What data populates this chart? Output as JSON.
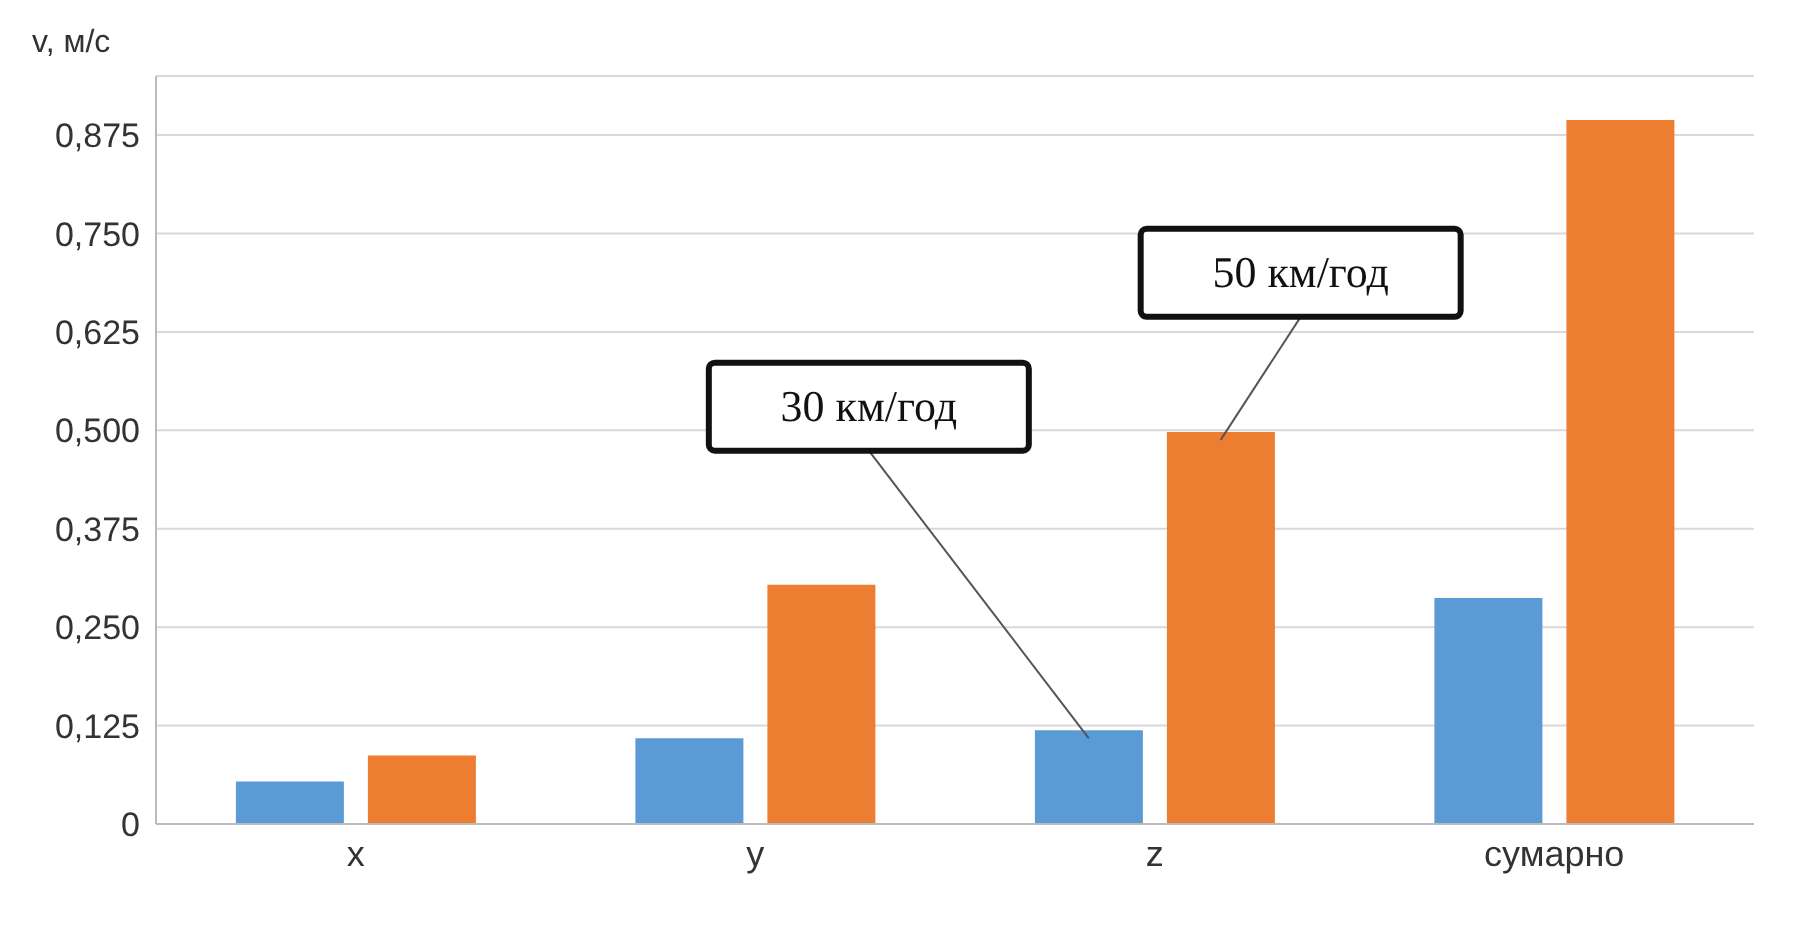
{
  "chart_data": {
    "type": "bar",
    "ylabel": "v, м/с",
    "categories": [
      "x",
      "y",
      "z",
      "сумарно"
    ],
    "series": [
      {
        "name": "30 км/год",
        "color": "#5b9bd5",
        "values": [
          0.054,
          0.109,
          0.119,
          0.287
        ]
      },
      {
        "name": "50 км/год",
        "color": "#ed7d31",
        "values": [
          0.087,
          0.304,
          0.498,
          0.894
        ]
      }
    ],
    "ylim": [
      0,
      0.95
    ],
    "yticks": [
      0,
      {
        "value": 0.125,
        "label": "0,125"
      },
      {
        "value": 0.25,
        "label": "0,250"
      },
      {
        "value": 0.375,
        "label": "0,375"
      },
      {
        "value": 0.5,
        "label": "0,500"
      },
      {
        "value": 0.625,
        "label": "0,625"
      },
      {
        "value": 0.75,
        "label": "0,750"
      },
      {
        "value": 0.875,
        "label": "0,875"
      }
    ],
    "grid": "y",
    "legend": false
  }
}
